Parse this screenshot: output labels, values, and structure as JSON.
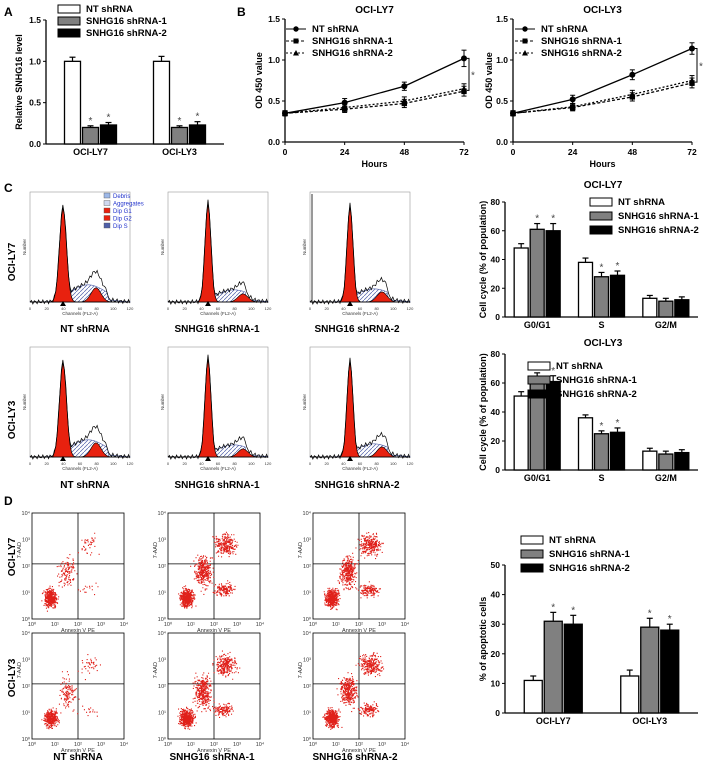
{
  "panel_labels": {
    "a": "A",
    "b": "B",
    "c": "C",
    "d": "D"
  },
  "groups": {
    "nt": "NT shRNA",
    "sh1": "SNHG16 shRNA-1",
    "sh2": "SNHG16 shRNA-2"
  },
  "cell_lines": {
    "ly7": "OCI-LY7",
    "ly3": "OCI-LY3"
  },
  "colors": {
    "nt": "#ffffff",
    "sh1": "#808080",
    "sh2": "#000000",
    "peak": "#e8210f",
    "dots": "#e0201a",
    "hatch": "#4f5fa8"
  },
  "star": "*",
  "chart_data": [
    {
      "id": "A",
      "type": "bar",
      "categories": [
        "OCI-LY7",
        "OCI-LY3"
      ],
      "series": [
        {
          "name": "NT shRNA",
          "values": [
            1.0,
            1.0
          ],
          "errors": [
            0.05,
            0.06
          ]
        },
        {
          "name": "SNHG16 shRNA-1",
          "values": [
            0.2,
            0.2
          ],
          "errors": [
            0.02,
            0.02
          ]
        },
        {
          "name": "SNHG16 shRNA-2",
          "values": [
            0.23,
            0.23
          ],
          "errors": [
            0.03,
            0.04
          ]
        }
      ],
      "ylabel": "Relative SNHG16 level",
      "ylim": [
        0,
        1.5
      ],
      "yticks": [
        "0.0",
        "0.5",
        "1.0",
        "1.5"
      ],
      "significant": [
        [
          false,
          true,
          true
        ],
        [
          false,
          true,
          true
        ]
      ]
    },
    {
      "id": "B1",
      "type": "line",
      "title": "OCI-LY7",
      "x": [
        0,
        24,
        48,
        72
      ],
      "xticks": [
        "0",
        "24",
        "48",
        "72"
      ],
      "series": [
        {
          "name": "NT shRNA",
          "values": [
            0.35,
            0.48,
            0.68,
            1.02
          ],
          "errors": [
            0.03,
            0.05,
            0.05,
            0.1
          ]
        },
        {
          "name": "SNHG16 shRNA-1",
          "values": [
            0.35,
            0.4,
            0.47,
            0.62
          ],
          "errors": [
            0.03,
            0.04,
            0.05,
            0.06
          ]
        },
        {
          "name": "SNHG16 shRNA-2",
          "values": [
            0.35,
            0.42,
            0.5,
            0.65
          ],
          "errors": [
            0.03,
            0.04,
            0.05,
            0.06
          ]
        }
      ],
      "xlabel": "Hours",
      "ylabel": "OD 450 value",
      "xlim": [
        0,
        72
      ],
      "ylim": [
        0,
        1.5
      ],
      "yticks": [
        "0.0",
        "0.5",
        "1.0",
        "1.5"
      ]
    },
    {
      "id": "B2",
      "type": "line",
      "title": "OCI-LY3",
      "x": [
        0,
        24,
        48,
        72
      ],
      "xticks": [
        "0",
        "24",
        "48",
        "72"
      ],
      "series": [
        {
          "name": "NT shRNA",
          "values": [
            0.35,
            0.52,
            0.82,
            1.14
          ],
          "errors": [
            0.03,
            0.05,
            0.06,
            0.07
          ]
        },
        {
          "name": "SNHG16 shRNA-1",
          "values": [
            0.35,
            0.42,
            0.55,
            0.72
          ],
          "errors": [
            0.03,
            0.04,
            0.05,
            0.06
          ]
        },
        {
          "name": "SNHG16 shRNA-2",
          "values": [
            0.35,
            0.43,
            0.58,
            0.75
          ],
          "errors": [
            0.03,
            0.04,
            0.05,
            0.06
          ]
        }
      ],
      "xlabel": "Hours",
      "ylabel": "OD 450 value",
      "xlim": [
        0,
        72
      ],
      "ylim": [
        0,
        1.5
      ],
      "yticks": [
        "0.0",
        "0.5",
        "1.0",
        "1.5"
      ]
    },
    {
      "id": "C1",
      "type": "bar",
      "title": "OCI-LY7",
      "categories": [
        "G0/G1",
        "S",
        "G2/M"
      ],
      "series": [
        {
          "name": "NT shRNA",
          "values": [
            48,
            38,
            13
          ],
          "errors": [
            3,
            3,
            2
          ]
        },
        {
          "name": "SNHG16 shRNA-1",
          "values": [
            61,
            28,
            11
          ],
          "errors": [
            4,
            3,
            2
          ]
        },
        {
          "name": "SNHG16 shRNA-2",
          "values": [
            60,
            29,
            12
          ],
          "errors": [
            5,
            3,
            2
          ]
        }
      ],
      "ylabel": "Cell cycle (% of population)",
      "ylim": [
        0,
        80
      ],
      "yticks": [
        "0",
        "20",
        "40",
        "60",
        "80"
      ],
      "significant": [
        [
          false,
          true,
          true
        ],
        [
          false,
          true,
          true
        ],
        [
          false,
          false,
          false
        ]
      ]
    },
    {
      "id": "C2",
      "type": "bar",
      "title": "OCI-LY3",
      "categories": [
        "G0/G1",
        "S",
        "G2/M"
      ],
      "series": [
        {
          "name": "NT shRNA",
          "values": [
            51,
            36,
            13
          ],
          "errors": [
            3,
            2,
            2
          ]
        },
        {
          "name": "SNHG16 shRNA-1",
          "values": [
            63,
            25,
            11
          ],
          "errors": [
            4,
            2,
            2
          ]
        },
        {
          "name": "SNHG16 shRNA-2",
          "values": [
            61,
            26,
            12
          ],
          "errors": [
            4,
            3,
            2
          ]
        }
      ],
      "ylabel": "Cell cycle (% of population)",
      "ylim": [
        0,
        80
      ],
      "yticks": [
        "0",
        "20",
        "40",
        "60",
        "80"
      ],
      "significant": [
        [
          false,
          true,
          true
        ],
        [
          false,
          true,
          true
        ],
        [
          false,
          false,
          false
        ]
      ]
    },
    {
      "id": "D",
      "type": "bar",
      "categories": [
        "OCI-LY7",
        "OCI-LY3"
      ],
      "series": [
        {
          "name": "NT shRNA",
          "values": [
            11,
            12.5
          ],
          "errors": [
            1.5,
            2
          ]
        },
        {
          "name": "SNHG16 shRNA-1",
          "values": [
            31,
            29
          ],
          "errors": [
            3,
            3
          ]
        },
        {
          "name": "SNHG16 shRNA-2",
          "values": [
            30,
            28
          ],
          "errors": [
            3,
            2
          ]
        }
      ],
      "ylabel": "% of apoptotic cells",
      "ylim": [
        0,
        50
      ],
      "yticks": [
        "0",
        "10",
        "20",
        "30",
        "40",
        "50"
      ],
      "significant": [
        [
          false,
          true,
          true
        ],
        [
          false,
          true,
          true
        ]
      ]
    }
  ],
  "histograms": {
    "legend": [
      "Debris",
      "Aggregates",
      "Dip G1",
      "Dip G2",
      "Dip S"
    ],
    "legend_colors": [
      "#9db8e8",
      "#cfd8f0",
      "#e8210f",
      "#e8210f",
      "#4f5fa8"
    ],
    "xlabel": "Channels (FL2-A)",
    "ylabel": "Number",
    "ticks": [
      "0",
      "20",
      "40",
      "60",
      "80",
      "100",
      "120"
    ]
  },
  "scatter_axes": {
    "xlabel": "Annexin V PE",
    "ylabel": "7-AAD",
    "ticks": [
      "10⁰",
      "10¹",
      "10²",
      "10³",
      "10⁴"
    ]
  }
}
